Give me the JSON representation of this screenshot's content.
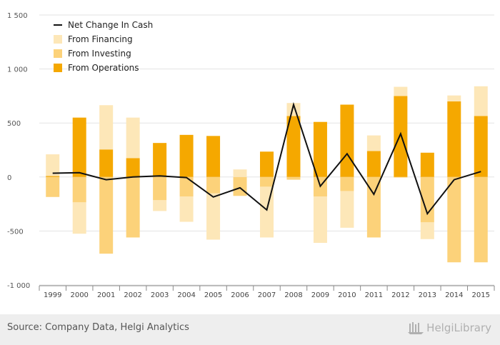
{
  "chart_data": {
    "type": "bar",
    "stacked": true,
    "categories": [
      "1999",
      "2000",
      "2001",
      "2002",
      "2003",
      "2004",
      "2005",
      "2006",
      "2007",
      "2008",
      "2009",
      "2010",
      "2011",
      "2012",
      "2013",
      "2014",
      "2015"
    ],
    "series": [
      {
        "name": "From Operations",
        "kind": "bar",
        "color": "#f5a800",
        "values": [
          10,
          550,
          255,
          175,
          315,
          390,
          380,
          0,
          235,
          565,
          510,
          670,
          240,
          750,
          225,
          700,
          565
        ]
      },
      {
        "name": "From Investing",
        "kind": "bar",
        "color": "#fcd27a",
        "values": [
          -185,
          -235,
          -710,
          -560,
          -215,
          -180,
          -150,
          -175,
          -90,
          -25,
          -180,
          -130,
          -560,
          -5,
          -420,
          -790,
          -790
        ]
      },
      {
        "name": "From Financing",
        "kind": "bar",
        "color": "#fde7b8",
        "values": [
          200,
          -290,
          410,
          375,
          -100,
          -235,
          -430,
          70,
          -470,
          120,
          -430,
          -340,
          145,
          85,
          -155,
          55,
          275
        ]
      },
      {
        "name": "Net Change In Cash",
        "kind": "line",
        "color": "#111111",
        "values": [
          35,
          40,
          -25,
          0,
          10,
          -5,
          -185,
          -100,
          -305,
          670,
          -85,
          215,
          -160,
          400,
          -340,
          -25,
          50
        ]
      }
    ],
    "ylim": [
      -1000,
      1500
    ],
    "yticks": [
      -1000,
      -500,
      0,
      500,
      1000,
      1500
    ],
    "ytick_labels": [
      "-1 000",
      "-500",
      "0",
      "500",
      "1 000",
      "1 500"
    ],
    "legend_position": "top-left",
    "grid": "horizontal",
    "legend_order": [
      "Net Change In Cash",
      "From Financing",
      "From Investing",
      "From Operations"
    ]
  },
  "footer": {
    "source": "Source: Company Data, Helgi Analytics",
    "logo_text": "HelgiLibrary"
  }
}
